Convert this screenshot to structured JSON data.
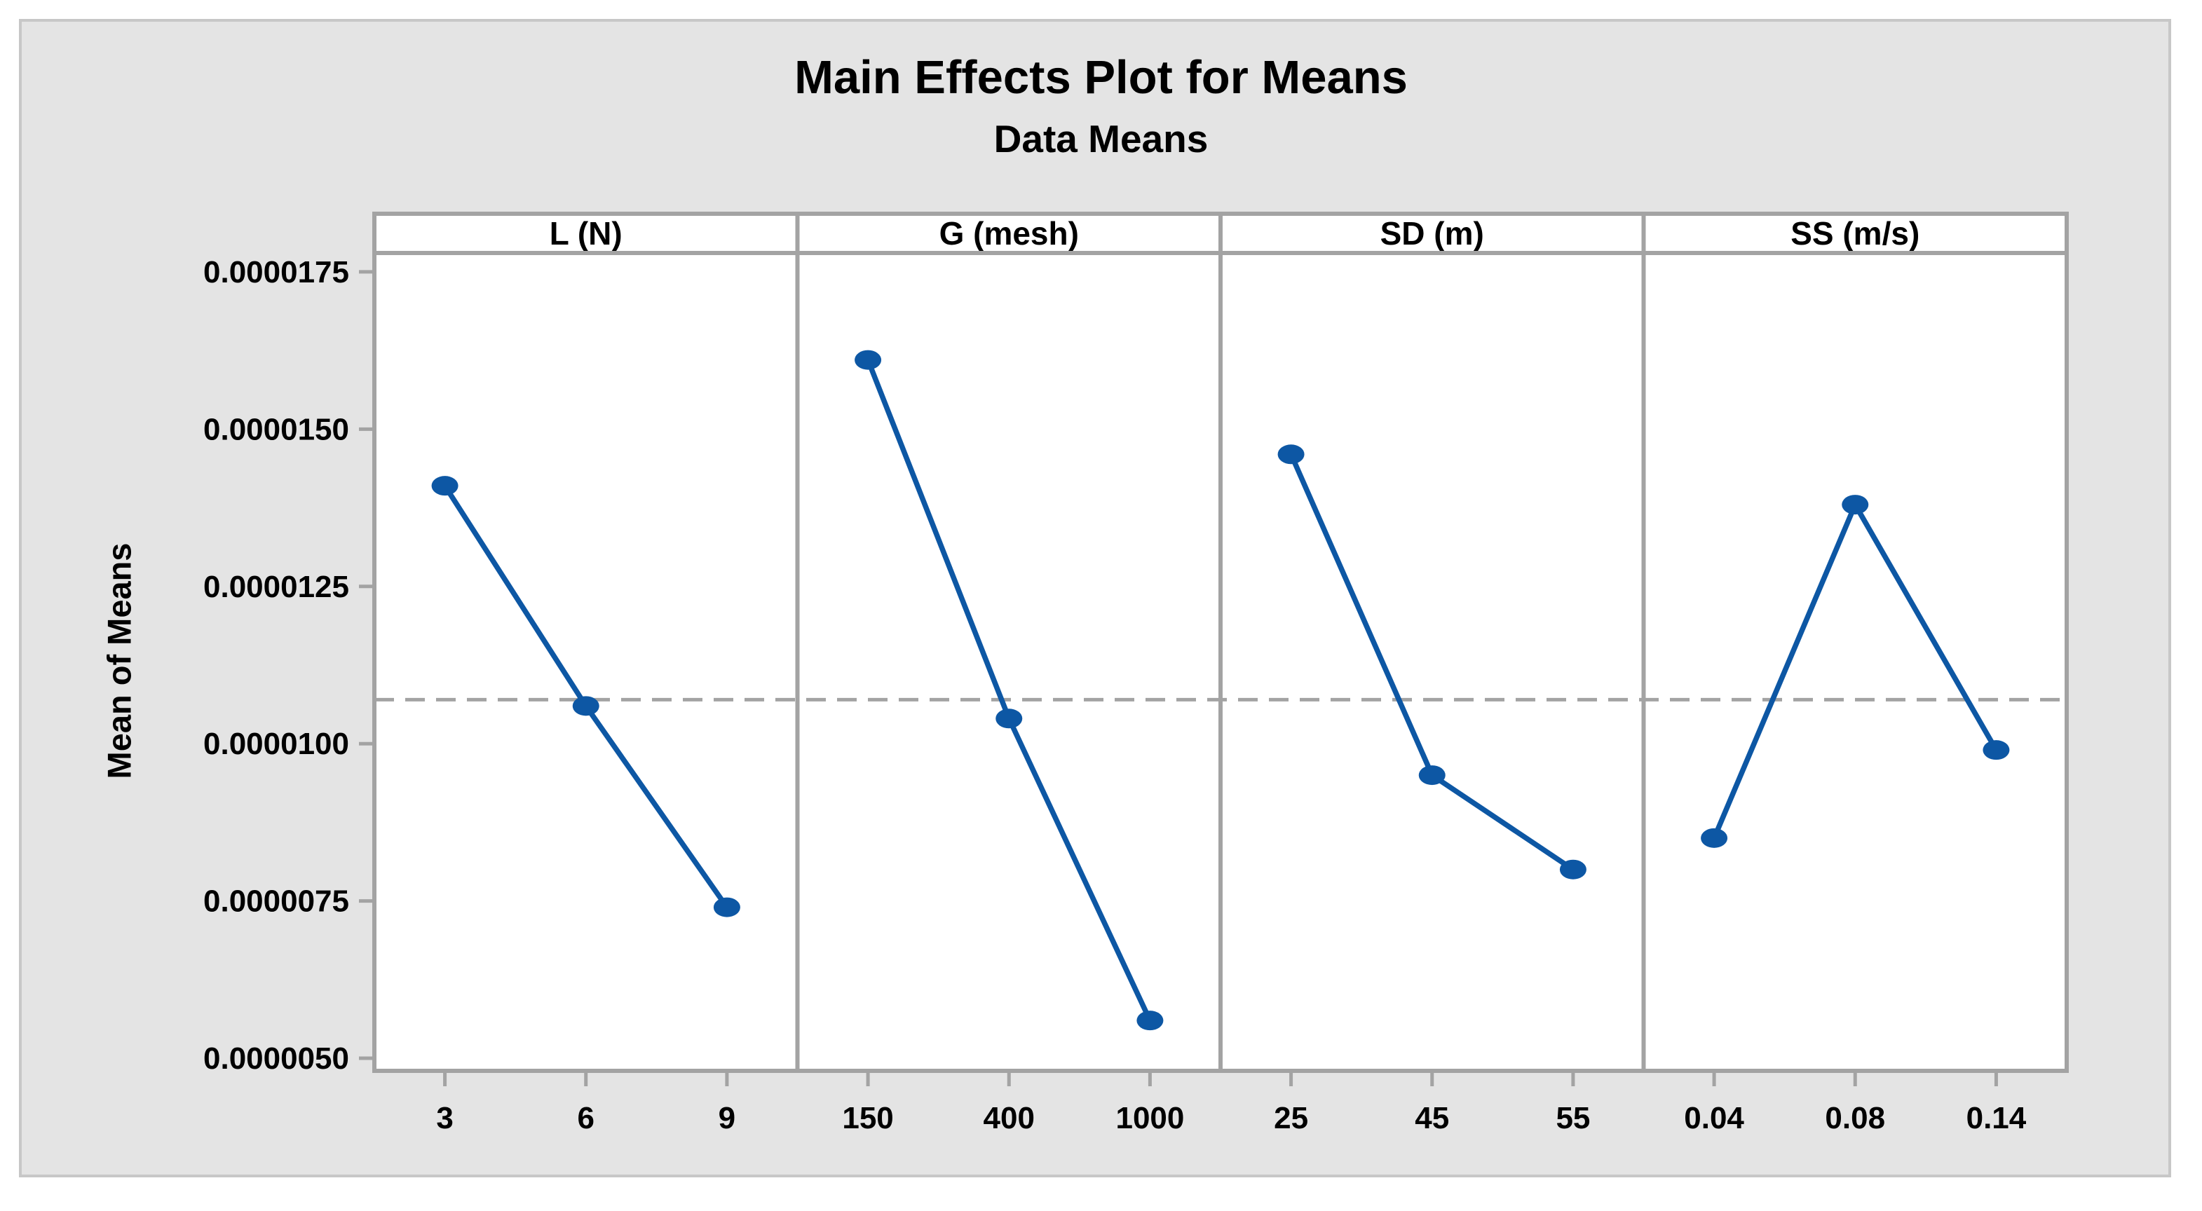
{
  "chart_data": {
    "type": "line",
    "title": "Main Effects Plot for Means",
    "subtitle": "Data Means",
    "ylabel": "Mean of Means",
    "ylim": [
      4.8e-06,
      1.78e-05
    ],
    "grid": false,
    "legend": "none",
    "yticks": [
      {
        "label": "0.0000175",
        "value": 1.75e-05
      },
      {
        "label": "0.0000150",
        "value": 1.5e-05
      },
      {
        "label": "0.0000125",
        "value": 1.25e-05
      },
      {
        "label": "0.0000100",
        "value": 1e-05
      },
      {
        "label": "0.0000075",
        "value": 7.5e-06
      },
      {
        "label": "0.0000050",
        "value": 5e-06
      }
    ],
    "reference_line": {
      "value": 1.07e-05,
      "style": "dashed"
    },
    "panels": [
      {
        "label": "L (N)",
        "categories": [
          "3",
          "6",
          "9"
        ],
        "values": [
          1.41e-05,
          1.06e-05,
          7.4e-06
        ]
      },
      {
        "label": "G (mesh)",
        "categories": [
          "150",
          "400",
          "1000"
        ],
        "values": [
          1.61e-05,
          1.04e-05,
          5.6e-06
        ]
      },
      {
        "label": "SD (m)",
        "categories": [
          "25",
          "45",
          "55"
        ],
        "values": [
          1.46e-05,
          9.5e-06,
          8e-06
        ]
      },
      {
        "label": "SS (m/s)",
        "categories": [
          "0.04",
          "0.08",
          "0.14"
        ],
        "values": [
          8.5e-06,
          1.38e-05,
          9.9e-06
        ]
      }
    ],
    "colors": {
      "series": "#0D57A4",
      "reference_line": "#A3A3A3",
      "frame": "#A3A3A3",
      "panel_background": "#FFFFFF",
      "figure_background": "#E4E4E4",
      "figure_border": "#C7C7C7",
      "text": "#000000"
    }
  }
}
